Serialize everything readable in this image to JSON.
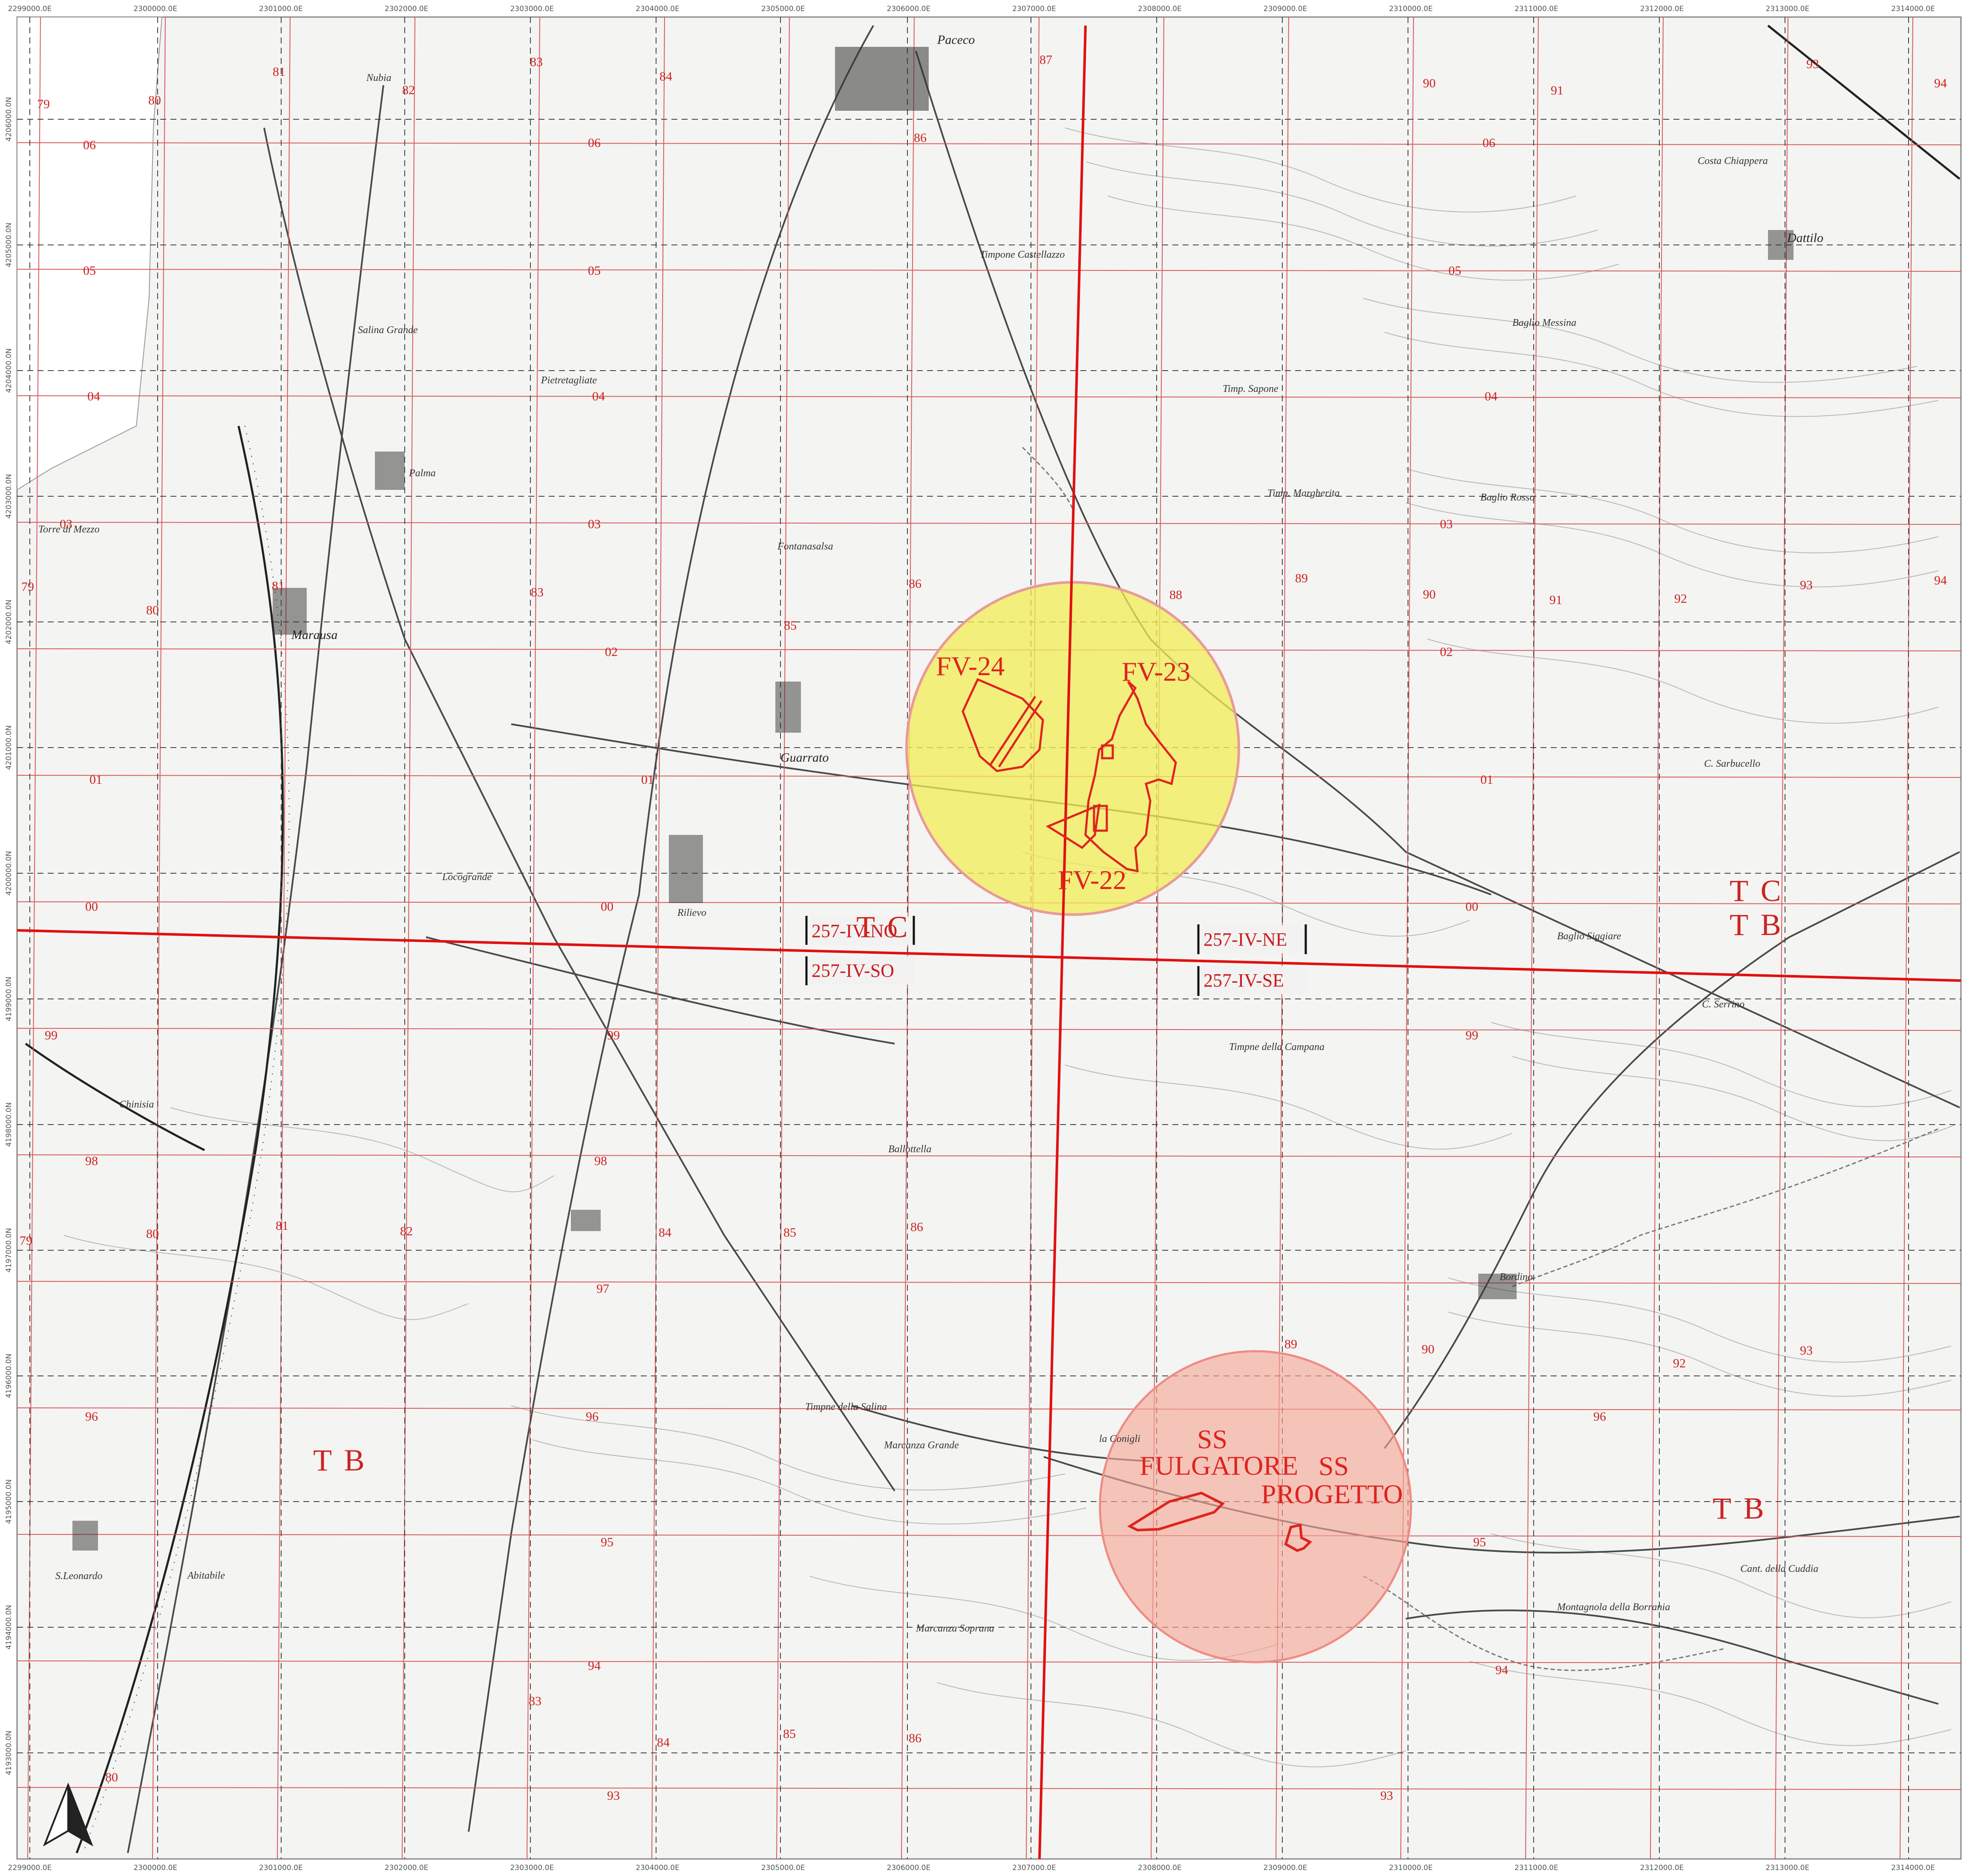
{
  "frame": {
    "x_ticks": [
      "2299000.0E",
      "2300000.0E",
      "2301000.0E",
      "2302000.0E",
      "2303000.0E",
      "2304000.0E",
      "2305000.0E",
      "2306000.0E",
      "2307000.0E",
      "2308000.0E",
      "2309000.0E",
      "2310000.0E",
      "2311000.0E",
      "2312000.0E",
      "2313000.0E",
      "2314000.0E"
    ],
    "y_ticks": [
      "4206000.0N",
      "4205000.0N",
      "4204000.0N",
      "4203000.0N",
      "4202000.0N",
      "4201000.0N",
      "4200000.0N",
      "4199000.0N",
      "4198000.0N",
      "4197000.0N",
      "4196000.0N",
      "4195000.0N",
      "4194000.0N",
      "4193000.0N"
    ]
  },
  "grid_numbers": {
    "columns": [
      "79",
      "80",
      "81",
      "82",
      "83",
      "84",
      "85",
      "86",
      "87",
      "88",
      "89",
      "90",
      "91",
      "92",
      "93",
      "94"
    ],
    "rows": [
      "06",
      "05",
      "04",
      "03",
      "02",
      "01",
      "00",
      "99",
      "98",
      "97",
      "96",
      "95",
      "94",
      "93"
    ]
  },
  "sites": {
    "fv24": "FV-24",
    "fv23": "FV-23",
    "fv22": "FV-22",
    "ss_fulgatore_line1": "SS",
    "ss_fulgatore_line2": "FULGATORE",
    "ss_progetto_line1": "SS",
    "ss_progetto_line2": "PROGETTO"
  },
  "sheets": {
    "no": "257-IV-NO",
    "so": "257-IV-SO",
    "ne": "257-IV-NE",
    "se": "257-IV-SE"
  },
  "zones": {
    "tc_center": "T C",
    "tc_right": "T C",
    "tb_right_upper": "T B",
    "tb_left": "T B",
    "tb_right_lower": "T B"
  },
  "places": {
    "paceco": "Paceco",
    "nubia": "Nubia",
    "marausa": "Marausa",
    "guarrato": "Guarrato",
    "dattilo": "Dattilo",
    "palma": "Palma",
    "rilievo": "Rilievo",
    "locogrande": "Locogrande",
    "salina_grande": "Salina Grande",
    "pietretagliate": "Pietretagliate",
    "fontanasalsa": "Fontanasalsa",
    "ballottella": "Ballottella",
    "borgo_fazio": "Bordino",
    "s_leonardo": "S.Leonardo",
    "abitabile": "Abitabile",
    "marcanza_grande": "Marcanza Grande",
    "timpone_castellazzo": "Timpone Castellazzo",
    "timp_zappone": "Timp. Sapone",
    "timp_margherita": "Timp. Margherita",
    "baglio_bosco": "Baglio Rosso",
    "torre_di_mezzo": "Torre di Mezzo",
    "chinisia": "Chinisia",
    "la_conigli": "la Conigli",
    "timp_della_campana": "Timpne della Campana",
    "timp_della_salina": "Timpne della Salina",
    "montagnola": "Montagnola della Borrania",
    "c_sarbucello": "C. Sarbucello",
    "baglio_siggiare": "Baglio Siggiare",
    "cozzo_mazzaro": "C. Serrino",
    "baglio_messina": "Baglio Messina",
    "costa_chiappera": "Costa Chiappera",
    "marcanza_soprana": "Marcanza Soprana",
    "cantoniera_cuddia": "Cant. della Cuddia"
  },
  "colors": {
    "grid_red": "#d9585c",
    "sheet_line": "#e01010",
    "site_outline": "#e0231e",
    "yellow_circle": "#f2ee54",
    "pink_circle": "#f5a796",
    "topo_line": "#9a9a9a",
    "road": "#4a4a4a"
  },
  "icons": {
    "north_arrow": "north-arrow-icon"
  }
}
